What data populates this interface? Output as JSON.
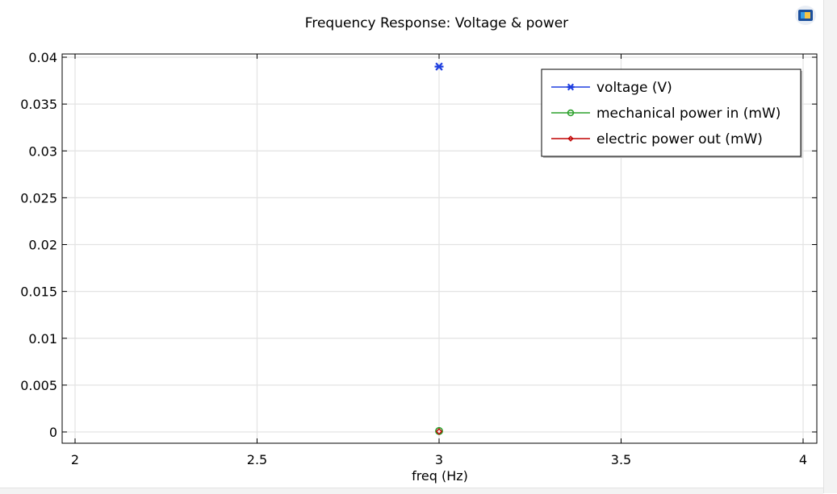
{
  "chart_data": {
    "type": "line",
    "title": "Frequency Response: Voltage & power",
    "xlabel": "freq (Hz)",
    "ylabel": "",
    "xlim": [
      2,
      4
    ],
    "ylim": [
      0,
      0.04
    ],
    "x_ticks": [
      2,
      2.5,
      3,
      3.5,
      4
    ],
    "x_tick_labels": [
      "2",
      "2.5",
      "3",
      "3.5",
      "4"
    ],
    "y_ticks": [
      0,
      0.005,
      0.01,
      0.015,
      0.02,
      0.025,
      0.03,
      0.035,
      0.04
    ],
    "y_tick_labels": [
      "0",
      "0.005",
      "0.01",
      "0.015",
      "0.02",
      "0.025",
      "0.03",
      "0.035",
      "0.04"
    ],
    "grid": true,
    "legend_position": "top-right",
    "series": [
      {
        "name": "voltage (V)",
        "color": "#1f3fe0",
        "marker": "asterisk",
        "x": [
          3
        ],
        "y": [
          0.039
        ]
      },
      {
        "name": "mechanical power in (mW)",
        "color": "#2ca02c",
        "marker": "circle",
        "x": [
          3
        ],
        "y": [
          0.0001
        ]
      },
      {
        "name": "electric power out (mW)",
        "color": "#c00000",
        "marker": "diamond",
        "x": [
          3
        ],
        "y": [
          5e-05
        ]
      }
    ]
  },
  "icons": {
    "corner": "app-logo-icon"
  }
}
